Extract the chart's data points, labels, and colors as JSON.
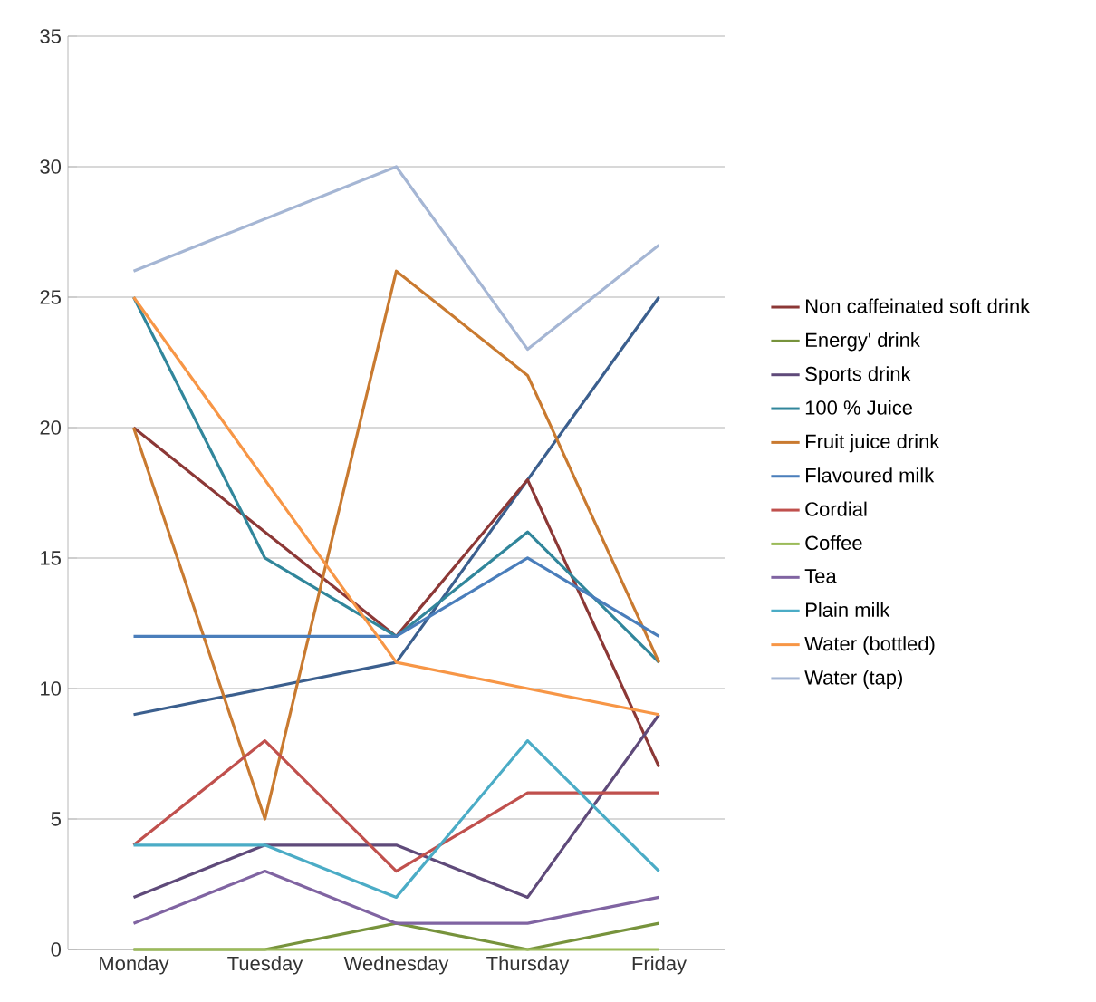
{
  "chart_data": {
    "type": "line",
    "categories": [
      "Monday",
      "Tuesday",
      "Wednesday",
      "Thursday",
      "Friday"
    ],
    "ylim": [
      0,
      35
    ],
    "yticks": [
      0,
      5,
      10,
      15,
      20,
      25,
      30,
      35
    ],
    "grid": "y",
    "legend": "right",
    "marker": "none",
    "line_style": "solid",
    "series": [
      {
        "color": "#3b5f8e",
        "values": [
          9,
          10,
          11,
          18,
          25
        ]
      },
      {
        "name": "Non caffeinated soft drink",
        "color": "#8c3836",
        "values": [
          20,
          16,
          12,
          18,
          7
        ]
      },
      {
        "name": "Energy' drink",
        "color": "#77933c",
        "values": [
          0,
          0,
          1,
          0,
          1
        ]
      },
      {
        "name": "Sports drink",
        "color": "#5f4a7a",
        "values": [
          2,
          4,
          4,
          2,
          9
        ]
      },
      {
        "name": "100 % Juice",
        "color": "#31869b",
        "values": [
          25,
          15,
          12,
          16,
          11
        ]
      },
      {
        "name": "Fruit juice drink",
        "color": "#c97a30",
        "values": [
          20,
          5,
          26,
          22,
          11
        ]
      },
      {
        "name": "Flavoured milk",
        "color": "#4a7ebb",
        "values": [
          12,
          12,
          12,
          15,
          12
        ]
      },
      {
        "name": "Cordial",
        "color": "#c0504d",
        "values": [
          4,
          8,
          3,
          6,
          6
        ]
      },
      {
        "name": "Coffee",
        "color": "#9bbb59",
        "values": [
          0,
          0,
          0,
          0,
          0
        ]
      },
      {
        "name": "Tea",
        "color": "#8064a2",
        "values": [
          1,
          3,
          1,
          1,
          2
        ]
      },
      {
        "name": "Plain milk",
        "color": "#4bacc6",
        "values": [
          4,
          4,
          2,
          8,
          3
        ]
      },
      {
        "name": "Water (bottled)",
        "color": "#f79646",
        "values": [
          25,
          18,
          11,
          10,
          9
        ]
      },
      {
        "name": "Water (tap)",
        "color": "#a5b6d4",
        "values": [
          26,
          28,
          30,
          23,
          27
        ]
      }
    ]
  }
}
